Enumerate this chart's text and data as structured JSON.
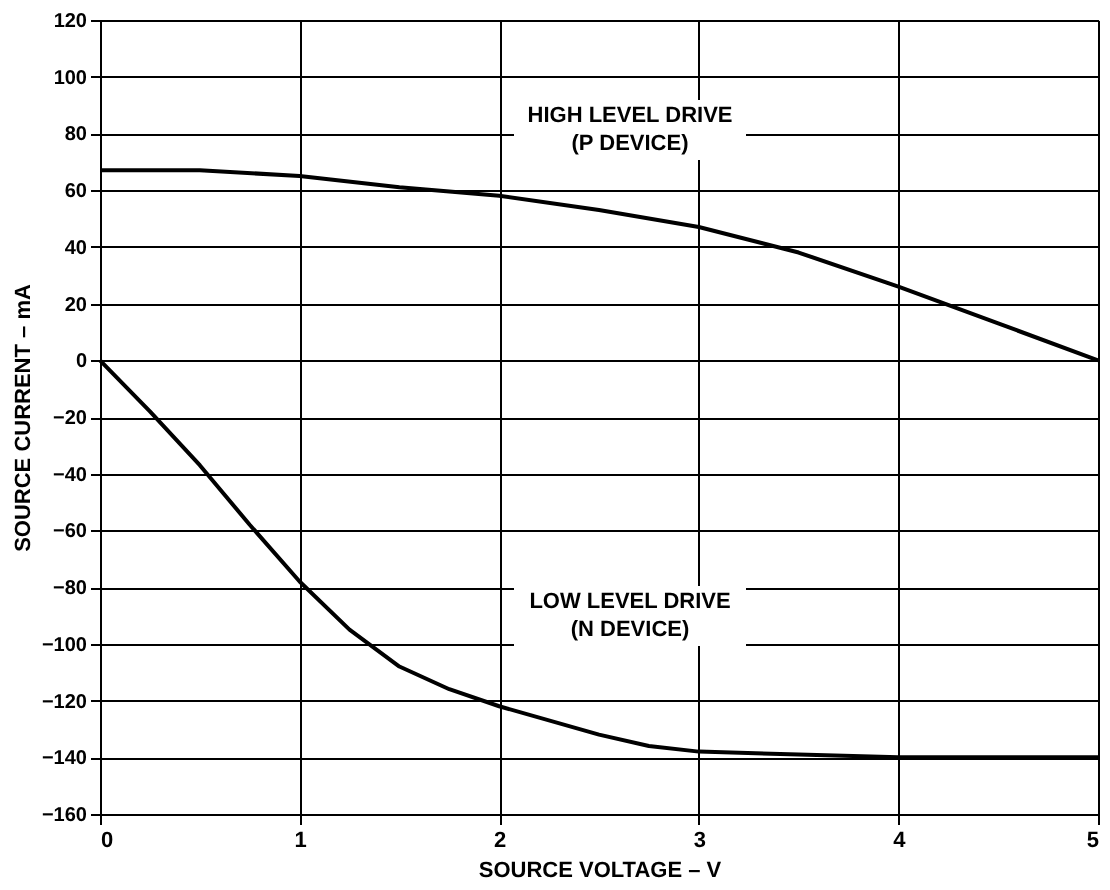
{
  "chart_data": {
    "type": "line",
    "xlabel": "SOURCE VOLTAGE – V",
    "ylabel": "SOURCE CURRENT – mA",
    "xlim": [
      0,
      5
    ],
    "xticks": [
      0,
      1,
      2,
      3,
      4,
      5
    ],
    "ylim": [
      -160,
      120
    ],
    "yticks": [
      -160,
      -140,
      -120,
      -100,
      -80,
      -60,
      -40,
      -20,
      0,
      20,
      40,
      60,
      80,
      100,
      120
    ],
    "grid": true,
    "marker": "none",
    "line_style": "solid",
    "series": [
      {
        "color": "#000000",
        "x": [
          0,
          0.5,
          1,
          1.5,
          2,
          2.5,
          3,
          3.5,
          4,
          4.5,
          5
        ],
        "values": [
          67,
          67,
          65,
          61,
          58,
          53,
          47,
          38,
          26,
          13,
          0
        ]
      },
      {
        "color": "#000000",
        "x": [
          0,
          0.25,
          0.5,
          0.75,
          1,
          1.25,
          1.5,
          1.75,
          2,
          2.5,
          2.75,
          3,
          3.5,
          4,
          5
        ],
        "values": [
          0,
          -18,
          -37,
          -58,
          -78,
          -95,
          -108,
          -116,
          -122,
          -132,
          -136,
          -138,
          -139,
          -140,
          -140
        ]
      }
    ],
    "annotations": [
      "HIGH LEVEL DRIVE\n(P DEVICE)",
      "LOW LEVEL DRIVE\n(N DEVICE)"
    ]
  }
}
